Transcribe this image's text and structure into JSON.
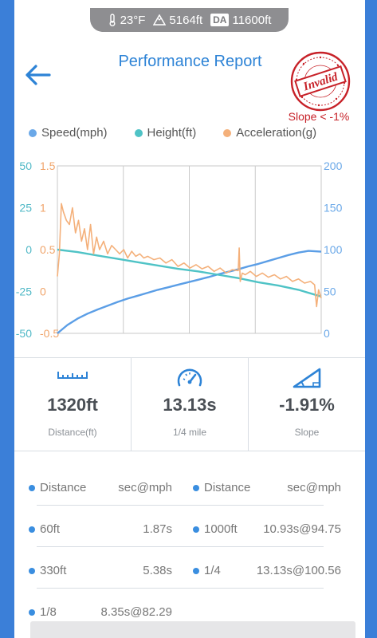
{
  "status": {
    "temperature": "23°F",
    "altitude": "5164ft",
    "da_label": "DA",
    "density_altitude": "11600ft"
  },
  "header": {
    "title": "Performance Report",
    "stamp_text": "Invalid",
    "slope_note": "Slope < -1%"
  },
  "legend": [
    {
      "label": "Speed(mph)",
      "color": "#6aa8e8"
    },
    {
      "label": "Height(ft)",
      "color": "#4fc3c6"
    },
    {
      "label": "Acceleration(g)",
      "color": "#f4b07a"
    }
  ],
  "chart_data": {
    "type": "line",
    "axes": {
      "height_ticks": [
        "50",
        "25",
        "0",
        "-25",
        "-50"
      ],
      "height_range": [
        -50,
        50
      ],
      "accel_ticks": [
        "1.5",
        "1",
        "0.5",
        "0",
        "-0.5"
      ],
      "accel_range": [
        -0.5,
        1.5
      ],
      "speed_ticks": [
        "200",
        "150",
        "100",
        "50",
        "0"
      ],
      "speed_range": [
        0,
        200
      ]
    },
    "x_range": [
      0,
      13.13
    ],
    "series": [
      {
        "name": "Speed(mph)",
        "color": "#5b9ee6",
        "x": [
          0,
          0.5,
          1,
          1.5,
          2,
          2.5,
          3,
          3.5,
          4,
          4.5,
          5,
          5.5,
          6,
          6.5,
          7,
          7.5,
          8,
          8.5,
          9,
          9.5,
          10,
          10.5,
          11,
          11.5,
          12,
          12.5,
          13.13
        ],
        "y": [
          0,
          10,
          17.5,
          23.5,
          28.5,
          33,
          37.5,
          41.5,
          45,
          48.5,
          52,
          55,
          58,
          61,
          64,
          67,
          70.5,
          73.5,
          76.5,
          80,
          83,
          86.5,
          90,
          93.5,
          96.5,
          98.5,
          97.5
        ]
      },
      {
        "name": "Height(ft)",
        "color": "#4fc3c6",
        "x": [
          0,
          1,
          2,
          3,
          4,
          5,
          6,
          7,
          8,
          9,
          10,
          11,
          12,
          13.13
        ],
        "y": [
          0,
          -1.5,
          -3.5,
          -5.5,
          -7.5,
          -9.5,
          -11.5,
          -13,
          -15,
          -17,
          -19.5,
          -21.5,
          -24,
          -28
        ]
      },
      {
        "name": "Acceleration(g)",
        "color": "#f4b07a",
        "x": [
          0,
          0.1,
          0.2,
          0.3,
          0.45,
          0.6,
          0.75,
          0.9,
          1.05,
          1.2,
          1.35,
          1.5,
          1.65,
          1.8,
          1.95,
          2.1,
          2.3,
          2.5,
          2.7,
          2.9,
          3.1,
          3.3,
          3.5,
          3.7,
          3.9,
          4.1,
          4.3,
          4.5,
          4.8,
          5.1,
          5.4,
          5.7,
          6.0,
          6.3,
          6.6,
          6.9,
          7.2,
          7.5,
          7.8,
          8.1,
          8.4,
          8.7,
          9.0,
          9.05,
          9.1,
          9.2,
          9.35,
          9.6,
          9.9,
          10.2,
          10.5,
          10.8,
          11.1,
          11.4,
          11.7,
          12.0,
          12.3,
          12.6,
          12.8,
          12.9,
          13.0,
          13.13
        ],
        "y": [
          0.18,
          0.45,
          1.05,
          0.95,
          0.85,
          0.8,
          1.0,
          0.7,
          0.85,
          0.6,
          0.75,
          0.5,
          0.8,
          0.45,
          0.65,
          0.5,
          0.6,
          0.45,
          0.55,
          0.5,
          0.45,
          0.5,
          0.4,
          0.48,
          0.42,
          0.45,
          0.4,
          0.42,
          0.38,
          0.4,
          0.34,
          0.38,
          0.3,
          0.34,
          0.28,
          0.32,
          0.27,
          0.3,
          0.24,
          0.28,
          0.22,
          0.26,
          0.25,
          0.52,
          0.12,
          0.22,
          0.2,
          0.24,
          0.18,
          0.22,
          0.17,
          0.2,
          0.15,
          0.18,
          0.12,
          0.15,
          0.1,
          0.12,
          0.08,
          -0.18,
          0.02,
          -0.08
        ]
      }
    ]
  },
  "stats": [
    {
      "icon": "ruler-icon",
      "value": "1320ft",
      "caption": "Distance(ft)"
    },
    {
      "icon": "speedometer-icon",
      "value": "13.13s",
      "caption": "1/4 mile"
    },
    {
      "icon": "slope-icon",
      "value": "-1.91%",
      "caption": "Slope"
    }
  ],
  "table": {
    "headers": [
      "Distance",
      "sec@mph",
      "Distance",
      "sec@mph"
    ],
    "rows": [
      [
        "60ft",
        "1.87s",
        "1000ft",
        "10.93s@94.75"
      ],
      [
        "330ft",
        "5.38s",
        "1/4",
        "13.13s@100.56"
      ],
      [
        "1/8",
        "8.35s@82.29",
        "",
        ""
      ]
    ]
  }
}
